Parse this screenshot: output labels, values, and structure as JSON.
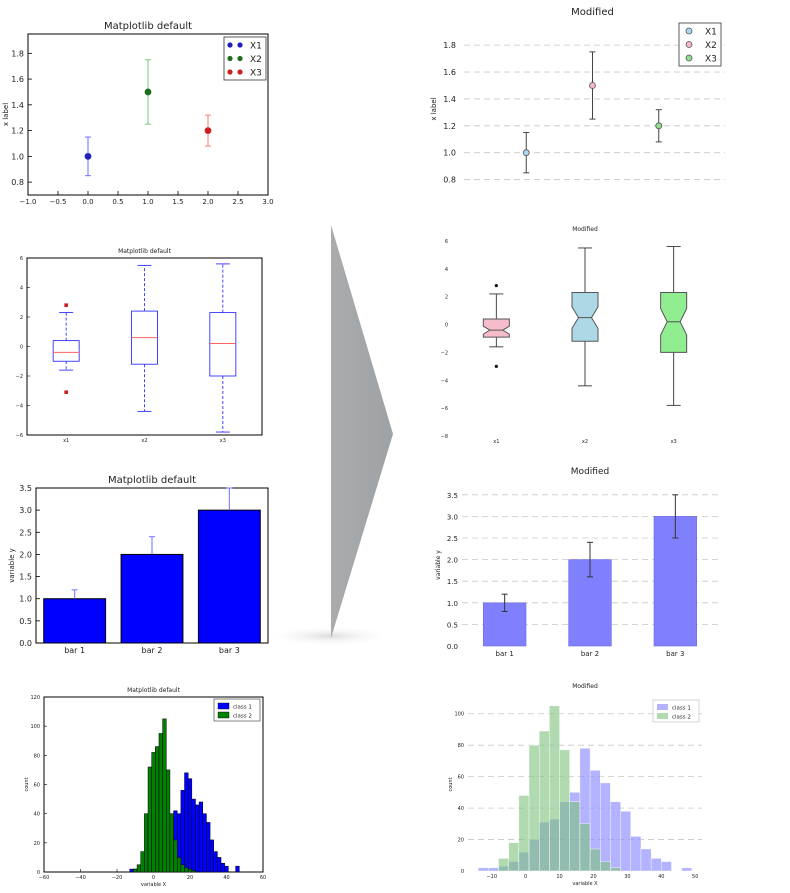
{
  "chart_data": [
    {
      "id": "scatter-default",
      "type": "scatter",
      "title": "Matplotlib default",
      "xlabel": "",
      "ylabel": "x label",
      "xlim": [
        -1.0,
        3.0
      ],
      "ylim": [
        0.7,
        1.95
      ],
      "xticks": [
        "−1.0",
        "−0.5",
        "0.0",
        "0.5",
        "1.0",
        "1.5",
        "2.0",
        "2.5",
        "3.0"
      ],
      "yticks": [
        "0.8",
        "1.0",
        "1.2",
        "1.4",
        "1.6",
        "1.8"
      ],
      "legend": "top-right",
      "series": [
        {
          "name": "X1",
          "x": 0,
          "y": 1.0,
          "err": 0.15,
          "color": "#2020c0",
          "errcolor": "#6f6fff"
        },
        {
          "name": "X2",
          "x": 1,
          "y": 1.5,
          "err": 0.25,
          "color": "#1e6e1e",
          "errcolor": "#7cc87c"
        },
        {
          "name": "X3",
          "x": 2,
          "y": 1.2,
          "err": 0.12,
          "color": "#cc2020",
          "errcolor": "#ff7a7a"
        }
      ]
    },
    {
      "id": "scatter-modified",
      "type": "scatter",
      "title": "Modified",
      "xlabel": "",
      "ylabel": "x label",
      "xlim": [
        -1.0,
        3.0
      ],
      "ylim": [
        0.7,
        1.95
      ],
      "yticks": [
        "0.8",
        "1.0",
        "1.2",
        "1.4",
        "1.6",
        "1.8"
      ],
      "grid": "horizontal dashed",
      "legend": "top-right",
      "series": [
        {
          "name": "X1",
          "x": 0,
          "y": 1.0,
          "err": 0.15,
          "color": "#a8d8ee"
        },
        {
          "name": "X2",
          "x": 1,
          "y": 1.5,
          "err": 0.25,
          "color": "#f5b8c6"
        },
        {
          "name": "X3",
          "x": 2,
          "y": 1.2,
          "err": 0.12,
          "color": "#8ee08e"
        }
      ]
    },
    {
      "id": "box-default",
      "type": "box",
      "title": "Matplotlib default",
      "ylim": [
        -6,
        6
      ],
      "yticks": [
        "−6",
        "−4",
        "−2",
        "0",
        "2",
        "4",
        "6"
      ],
      "categories": [
        "x1",
        "x2",
        "x3"
      ],
      "boxes": [
        {
          "whislo": -1.6,
          "q1": -1.0,
          "med": -0.4,
          "q3": 0.4,
          "whishi": 2.3,
          "fliers": [
            2.8,
            -3.1
          ]
        },
        {
          "whislo": -4.4,
          "q1": -1.2,
          "med": 0.6,
          "q3": 2.4,
          "whishi": 5.5,
          "fliers": []
        },
        {
          "whislo": -5.8,
          "q1": -2.0,
          "med": 0.2,
          "q3": 2.3,
          "whishi": 5.6,
          "fliers": []
        }
      ]
    },
    {
      "id": "box-modified",
      "type": "box",
      "title": "Modified",
      "ylim": [
        -8,
        6
      ],
      "yticks": [
        "−8",
        "−6",
        "−4",
        "−2",
        "0",
        "2",
        "4",
        "6"
      ],
      "categories": [
        "x1",
        "x2",
        "x3"
      ],
      "colors": [
        "#f7bccb",
        "#add8e6",
        "#90ee90"
      ],
      "boxes": [
        {
          "whislo": -1.6,
          "q1": -0.9,
          "med": -0.4,
          "q3": 0.4,
          "whishi": 2.2,
          "fliers": [
            2.8,
            -3.0
          ]
        },
        {
          "whislo": -4.4,
          "q1": -1.2,
          "med": 0.5,
          "q3": 2.3,
          "whishi": 5.5,
          "fliers": []
        },
        {
          "whislo": -5.8,
          "q1": -2.0,
          "med": 0.2,
          "q3": 2.3,
          "whishi": 5.6,
          "fliers": []
        }
      ]
    },
    {
      "id": "bar-default",
      "type": "bar",
      "title": "Matplotlib default",
      "xlabel": "",
      "ylabel": "variable y",
      "categories": [
        "bar 1",
        "bar 2",
        "bar 3"
      ],
      "values": [
        1,
        2,
        3
      ],
      "errors": [
        0.2,
        0.4,
        0.5
      ],
      "ylim": [
        0,
        3.5
      ],
      "yticks": [
        "0.0",
        "0.5",
        "1.0",
        "1.5",
        "2.0",
        "2.5",
        "3.0",
        "3.5"
      ],
      "color": "#0000ff"
    },
    {
      "id": "bar-modified",
      "type": "bar",
      "title": "Modified",
      "xlabel": "",
      "ylabel": "variable y",
      "categories": [
        "bar 1",
        "bar 2",
        "bar 3"
      ],
      "values": [
        1,
        2,
        3
      ],
      "errors": [
        0.2,
        0.4,
        0.5
      ],
      "ylim": [
        0,
        3.75
      ],
      "yticks": [
        "0.0",
        "0.5",
        "1.0",
        "1.5",
        "2.0",
        "2.5",
        "3.0",
        "3.5"
      ],
      "grid": "horizontal dashed",
      "color": "#8080ff"
    },
    {
      "id": "hist-default",
      "type": "histogram",
      "title": "Matplotlib default",
      "xlabel": "variable X",
      "ylabel": "count",
      "xlim": [
        -60,
        60
      ],
      "ylim": [
        0,
        120
      ],
      "xticks": [
        "−60",
        "−40",
        "−20",
        "0",
        "20",
        "40",
        "60"
      ],
      "yticks": [
        "0",
        "20",
        "40",
        "60",
        "80",
        "100",
        "120"
      ],
      "legend": "top-right",
      "series": [
        {
          "name": "class 1",
          "color": "#0000ff",
          "bins": [
            [
              -13,
              -11,
              2
            ],
            [
              -11,
              -9,
              2
            ],
            [
              -9,
              -7,
              0
            ],
            [
              -7,
              -5,
              2
            ],
            [
              -5,
              -3,
              3
            ],
            [
              -3,
              -1,
              6
            ],
            [
              -1,
              1,
              10
            ],
            [
              1,
              3,
              18
            ],
            [
              3,
              5,
              24
            ],
            [
              5,
              7,
              30
            ],
            [
              7,
              9,
              32
            ],
            [
              9,
              11,
              38
            ],
            [
              11,
              13,
              42
            ],
            [
              13,
              15,
              40
            ],
            [
              15,
              17,
              56
            ],
            [
              17,
              19,
              68
            ],
            [
              19,
              21,
              64
            ],
            [
              21,
              23,
              50
            ],
            [
              23,
              25,
              46
            ],
            [
              25,
              27,
              48
            ],
            [
              27,
              29,
              40
            ],
            [
              29,
              31,
              34
            ],
            [
              31,
              33,
              22
            ],
            [
              33,
              35,
              14
            ],
            [
              35,
              37,
              10
            ],
            [
              37,
              39,
              6
            ],
            [
              39,
              41,
              4
            ],
            [
              45,
              47,
              4
            ]
          ]
        },
        {
          "name": "class 2",
          "color": "#008000",
          "bins": [
            [
              -11,
              -9,
              2
            ],
            [
              -9,
              -7,
              5
            ],
            [
              -7,
              -5,
              14
            ],
            [
              -5,
              -3,
              40
            ],
            [
              -3,
              -1,
              72
            ],
            [
              -1,
              1,
              82
            ],
            [
              1,
              3,
              86
            ],
            [
              3,
              5,
              95
            ],
            [
              5,
              7,
              105
            ],
            [
              7,
              9,
              70
            ],
            [
              9,
              11,
              40
            ],
            [
              11,
              13,
              22
            ],
            [
              13,
              15,
              10
            ],
            [
              15,
              17,
              5
            ],
            [
              17,
              19,
              3
            ],
            [
              19,
              21,
              2
            ],
            [
              21,
              23,
              1
            ]
          ]
        }
      ]
    },
    {
      "id": "hist-modified",
      "type": "histogram",
      "title": "Modified",
      "xlabel": "variable X",
      "ylabel": "count",
      "xlim": [
        -17,
        52
      ],
      "ylim": [
        0,
        110
      ],
      "xticks": [
        "−10",
        "0",
        "10",
        "20",
        "30",
        "40",
        "50"
      ],
      "yticks": [
        "0",
        "20",
        "40",
        "60",
        "80",
        "100"
      ],
      "grid": "horizontal dashed",
      "legend": "top-right",
      "series": [
        {
          "name": "class 1",
          "color": "#8080ff",
          "bins": [
            [
              -14,
              -11,
              2
            ],
            [
              -11,
              -8,
              2
            ],
            [
              -8,
              -5,
              3
            ],
            [
              -5,
              -2,
              6
            ],
            [
              -2,
              1,
              12
            ],
            [
              1,
              4,
              20
            ],
            [
              4,
              7,
              31
            ],
            [
              7,
              10,
              33
            ],
            [
              10,
              13,
              44
            ],
            [
              13,
              16,
              50
            ],
            [
              16,
              19,
              78
            ],
            [
              19,
              22,
              64
            ],
            [
              22,
              25,
              56
            ],
            [
              25,
              28,
              44
            ],
            [
              28,
              31,
              38
            ],
            [
              31,
              34,
              22
            ],
            [
              34,
              37,
              14
            ],
            [
              37,
              40,
              8
            ],
            [
              40,
              43,
              6
            ],
            [
              46,
              49,
              2
            ]
          ]
        },
        {
          "name": "class 2",
          "color": "#7dc17d",
          "bins": [
            [
              -8,
              -5,
              8
            ],
            [
              -5,
              -2,
              18
            ],
            [
              -2,
              1,
              48
            ],
            [
              1,
              4,
              80
            ],
            [
              4,
              7,
              89
            ],
            [
              7,
              10,
              105
            ],
            [
              10,
              13,
              77
            ],
            [
              13,
              16,
              44
            ],
            [
              16,
              19,
              30
            ],
            [
              19,
              22,
              14
            ],
            [
              22,
              25,
              6
            ],
            [
              25,
              28,
              2
            ]
          ]
        }
      ]
    }
  ]
}
